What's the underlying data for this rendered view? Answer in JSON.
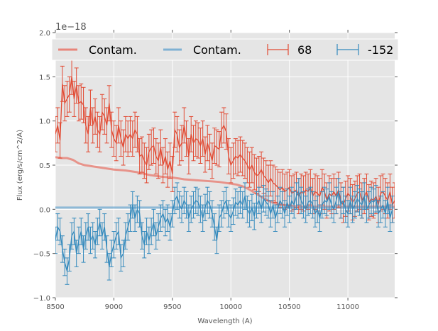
{
  "chart_data": {
    "type": "line",
    "title": "",
    "xlabel": "Wavelength (A)",
    "ylabel": "Flux (erg/s/cm^2/A)",
    "y_offset_text": "1e−18",
    "xlim": [
      8500,
      11400
    ],
    "ylim": [
      -1.0,
      2.0
    ],
    "grid": true,
    "background": "#e5e5e5",
    "legend_position": "top",
    "xticks": [
      8500,
      9000,
      9500,
      10000,
      10500,
      11000
    ],
    "xtick_labels": [
      "8500",
      "9000",
      "9500",
      "10000",
      "10500",
      "11000"
    ],
    "yticks": [
      -1.0,
      -0.5,
      0.0,
      0.5,
      1.0,
      1.5,
      2.0
    ],
    "ytick_labels": [
      "−1.0",
      "−0.5",
      "0.0",
      "0.5",
      "1.0",
      "1.5",
      "2.0"
    ],
    "legend": [
      {
        "label": "Contam.",
        "kind": "line",
        "color": "#e8857a"
      },
      {
        "label": "Contam.",
        "kind": "line",
        "color": "#7fb1d3"
      },
      {
        "label": "68",
        "kind": "errorbar",
        "color": "#e24a33"
      },
      {
        "label": "-152",
        "kind": "errorbar",
        "color": "#348abd"
      }
    ],
    "series": [
      {
        "name": "Contam. (68)",
        "kind": "line",
        "color": "#e8857a",
        "x": [
          8500,
          8550,
          8600,
          8650,
          8700,
          8750,
          8800,
          8900,
          9000,
          9100,
          9200,
          9300,
          9400,
          9500,
          9600,
          9700,
          9800,
          9900,
          10000,
          10050,
          10100,
          10150,
          10200,
          10250,
          10300,
          10350,
          10400,
          10500,
          10600,
          10800,
          11000,
          11200,
          11400
        ],
        "y": [
          0.59,
          0.58,
          0.58,
          0.56,
          0.52,
          0.5,
          0.49,
          0.47,
          0.45,
          0.44,
          0.42,
          0.39,
          0.37,
          0.36,
          0.34,
          0.33,
          0.32,
          0.31,
          0.29,
          0.28,
          0.26,
          0.23,
          0.19,
          0.15,
          0.11,
          0.08,
          0.06,
          0.04,
          0.03,
          0.03,
          0.03,
          0.03,
          0.03
        ]
      },
      {
        "name": "Contam. (-152)",
        "kind": "line",
        "color": "#7fb1d3",
        "x": [
          8500,
          9000,
          9500,
          10000,
          10500,
          11000,
          11400
        ],
        "y": [
          0.02,
          0.02,
          0.02,
          0.02,
          0.02,
          0.02,
          0.02
        ]
      },
      {
        "name": "68",
        "kind": "errorbar",
        "color": "#e24a33",
        "x0": 8500,
        "dx": 20,
        "y": [
          0.85,
          0.95,
          0.78,
          1.42,
          1.2,
          1.25,
          1.3,
          1.5,
          1.25,
          1.4,
          1.2,
          1.22,
          1.18,
          0.95,
          0.85,
          1.15,
          0.95,
          1.05,
          0.9,
          0.85,
          1.1,
          1.05,
          0.95,
          1.2,
          0.9,
          0.8,
          0.75,
          0.95,
          0.8,
          0.7,
          0.85,
          0.8,
          0.85,
          0.8,
          0.9,
          0.85,
          0.6,
          0.62,
          0.55,
          0.5,
          0.65,
          0.7,
          0.72,
          0.6,
          0.55,
          0.7,
          0.5,
          0.6,
          0.45,
          0.55,
          0.4,
          0.9,
          0.85,
          0.7,
          0.75,
          0.95,
          0.8,
          0.6,
          0.85,
          0.75,
          0.8,
          0.78,
          0.72,
          0.8,
          0.62,
          0.75,
          0.65,
          0.55,
          0.72,
          0.7,
          0.68,
          0.9,
          0.95,
          0.88,
          0.6,
          0.5,
          0.55,
          0.6,
          0.58,
          0.62,
          0.58,
          0.55,
          0.5,
          0.45,
          0.5,
          0.42,
          0.38,
          0.4,
          0.45,
          0.38,
          0.35,
          0.3,
          0.35,
          0.3,
          0.28,
          0.25,
          0.22,
          0.25,
          0.2,
          0.22,
          0.25,
          0.18,
          0.2,
          0.22,
          0.15,
          0.2,
          0.18,
          0.22,
          0.2,
          0.25,
          0.15,
          0.2,
          0.18,
          0.15,
          0.25,
          0.2,
          0.1,
          0.18,
          0.15,
          0.2,
          0.15,
          0.22,
          0.1,
          0.05,
          0.12,
          0.18,
          0.15,
          0.08,
          0.12,
          0.18,
          0.2,
          0.1,
          0.15,
          0.2,
          0.08,
          0.12,
          0.1,
          0.15,
          0.05,
          0.18,
          0.2,
          0.15,
          0.1,
          0.2,
          0.05,
          0.1,
          0.15
        ],
        "yerr": 0.2
      },
      {
        "name": "-152",
        "kind": "errorbar",
        "color": "#348abd",
        "x0": 8500,
        "dx": 20,
        "y": [
          -0.35,
          -0.2,
          -0.25,
          -0.45,
          -0.6,
          -0.7,
          -0.55,
          -0.3,
          -0.25,
          -0.5,
          -0.35,
          -0.25,
          -0.45,
          -0.3,
          -0.2,
          -0.35,
          -0.3,
          -0.4,
          -0.25,
          -0.15,
          -0.3,
          -0.2,
          -0.45,
          -0.65,
          -0.5,
          -0.4,
          -0.3,
          -0.25,
          -0.55,
          -0.5,
          -0.3,
          -0.2,
          -0.1,
          0.05,
          -0.1,
          0.0,
          -0.05,
          -0.3,
          -0.4,
          -0.25,
          -0.35,
          -0.25,
          -0.15,
          -0.3,
          -0.2,
          -0.1,
          -0.05,
          -0.15,
          -0.1,
          -0.2,
          -0.05,
          0.1,
          0.15,
          0.05,
          0.0,
          0.1,
          0.05,
          -0.1,
          0.0,
          0.05,
          0.1,
          0.08,
          0.0,
          -0.1,
          0.02,
          0.1,
          0.05,
          -0.05,
          -0.2,
          -0.35,
          -0.1,
          -0.05,
          0.05,
          0.1,
          -0.05,
          -0.1,
          -0.02,
          0.08,
          0.05,
          0.1,
          0.05,
          0.15,
          0.0,
          -0.05,
          0.02,
          -0.08,
          0.05,
          0.1,
          0.0,
          0.12,
          0.08,
          0.05,
          -0.05,
          0.05,
          -0.1,
          0.0,
          0.1,
          0.05,
          -0.05,
          0.08,
          0.0,
          0.1,
          0.05,
          0.15,
          0.2,
          0.1,
          0.05,
          0.0,
          0.08,
          0.1,
          0.05,
          -0.05,
          0.0,
          -0.1,
          0.05,
          0.1,
          0.08,
          0.15,
          0.05,
          0.0,
          0.1,
          0.2,
          0.05,
          0.1,
          0.0,
          -0.05,
          0.1,
          0.0,
          0.05,
          0.12,
          0.08,
          0.05,
          0.15,
          0.0,
          0.05,
          0.1,
          0.08,
          0.12,
          -0.05,
          0.0,
          0.05,
          -0.05,
          0.1,
          -0.1,
          0.0
        ],
        "yerr": 0.15
      }
    ]
  }
}
